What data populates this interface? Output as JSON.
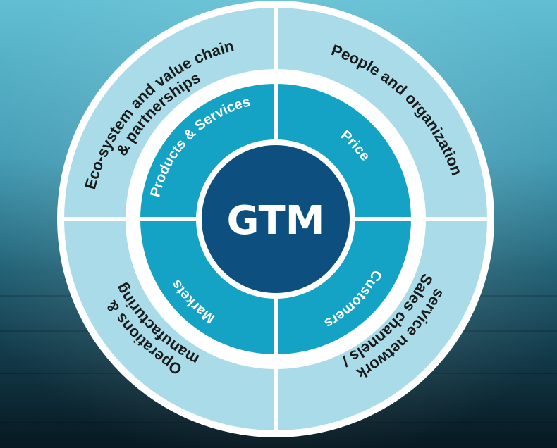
{
  "diagram": {
    "center": {
      "label": "GTM"
    },
    "inner_ring": [
      {
        "id": "products-services",
        "label": "Products & Services"
      },
      {
        "id": "price",
        "label": "Price"
      },
      {
        "id": "customers",
        "label": "Customers"
      },
      {
        "id": "markets",
        "label": "Markets"
      }
    ],
    "outer_ring": [
      {
        "id": "ecosystem",
        "line1": "Eco-system and value chain",
        "line2": "& partnerships"
      },
      {
        "id": "people",
        "line1": "People and organization"
      },
      {
        "id": "sales",
        "line1": "Sales channels /",
        "line2": "service network"
      },
      {
        "id": "operations",
        "line1": "Operations &",
        "line2": "manufacturing"
      }
    ]
  },
  "colors": {
    "background_top": "#4fb3c8",
    "background_mid": "#1f6f86",
    "background_bottom": "#0b2a36",
    "outer_ring": "#a9dbe8",
    "white_ring": "#ffffff",
    "inner_ring": "#14a3c4",
    "center": "#0d4f7f",
    "divider": "#ffffff"
  }
}
